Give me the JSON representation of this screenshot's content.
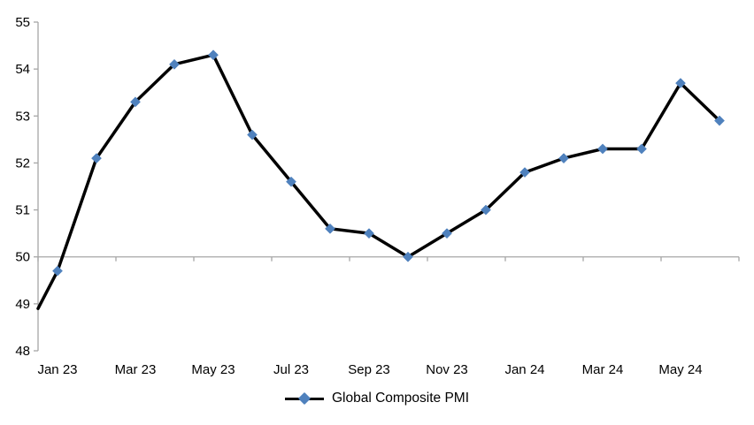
{
  "chart_data": {
    "type": "line",
    "title": "",
    "categories": [
      "Jan 23",
      "Feb 23",
      "Mar 23",
      "Apr 23",
      "May 23",
      "Jun 23",
      "Jul 23",
      "Aug 23",
      "Sep 23",
      "Oct 23",
      "Nov 23",
      "Dec 23",
      "Jan 24",
      "Feb 24",
      "Mar 24",
      "Apr 24",
      "May 24",
      "Jun 24"
    ],
    "series": [
      {
        "name": "Global Composite PMI",
        "values": [
          49.7,
          52.1,
          53.3,
          54.1,
          54.3,
          52.6,
          51.6,
          50.6,
          50.5,
          50.0,
          50.5,
          51.0,
          51.8,
          52.1,
          52.3,
          52.3,
          53.7,
          52.9
        ],
        "line_color": "#000000",
        "line_width": 3.5,
        "marker": "diamond",
        "marker_color": "#4F81BD",
        "lead_in_value_at_axis": 48.9
      }
    ],
    "x_tick_labels": [
      "Jan 23",
      "Mar 23",
      "May 23",
      "Jul 23",
      "Sep 23",
      "Nov 23",
      "Jan 24",
      "Mar 24",
      "May 24"
    ],
    "x_label_every_n_categories": 2,
    "ylim": [
      48,
      55
    ],
    "y_ticks": [
      48,
      49,
      50,
      51,
      52,
      53,
      54,
      55
    ],
    "category_axis_cross_value": 50,
    "axis_color": "#A6A6A6",
    "text_color": "#000000",
    "grid": "none",
    "legend_position": "bottom-center"
  },
  "legend": {
    "label": "Global Composite PMI"
  }
}
